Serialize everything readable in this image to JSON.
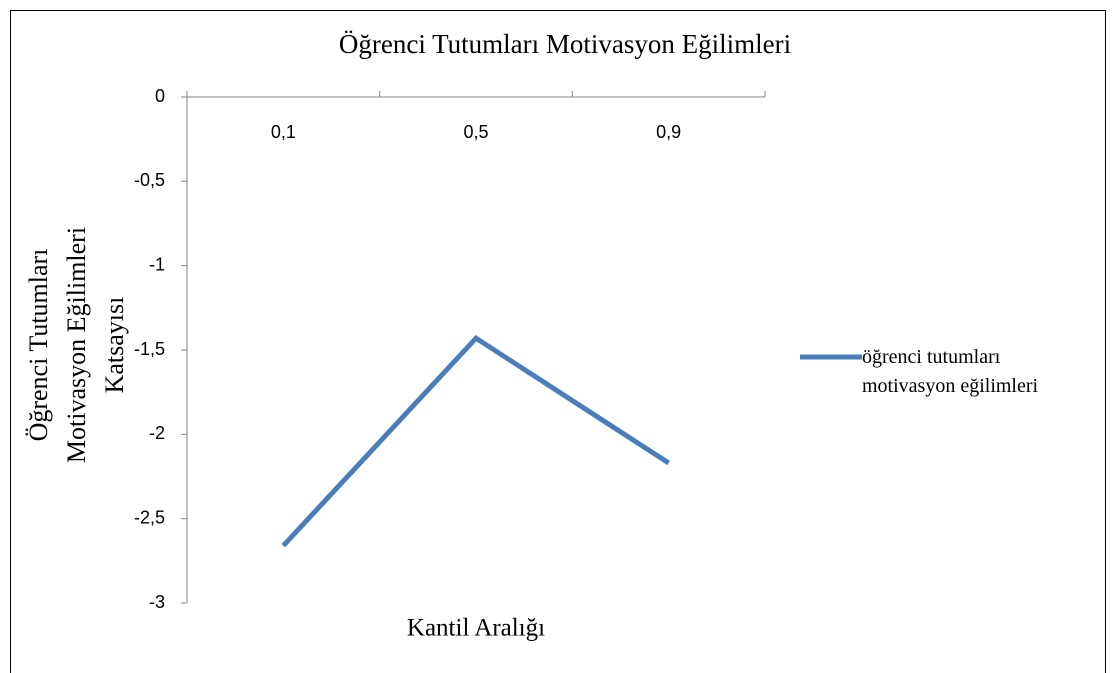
{
  "chart_data": {
    "type": "line",
    "title": "Öğrenci Tutumları Motivasyon Eğilimleri",
    "xlabel": "Kantil Aralığı",
    "ylabel": "Öğrenci Tutumları Motivasyon Eğilimleri Katsayısı",
    "categories": [
      "0,1",
      "0,5",
      "0,9"
    ],
    "series": [
      {
        "name": "öğrenci tutumları motivasyon eğilimleri",
        "color": "#4a7ebb",
        "values": [
          -2.66,
          -1.43,
          -2.17
        ]
      }
    ],
    "ylim": [
      -3,
      0
    ],
    "yticks": [
      0,
      {
        "value": -0.5,
        "label": "-0,5"
      },
      -1,
      {
        "value": -1.5,
        "label": "-1,5"
      },
      -2,
      {
        "value": -2.5,
        "label": "-2,5"
      },
      -3
    ],
    "legend": "right"
  }
}
